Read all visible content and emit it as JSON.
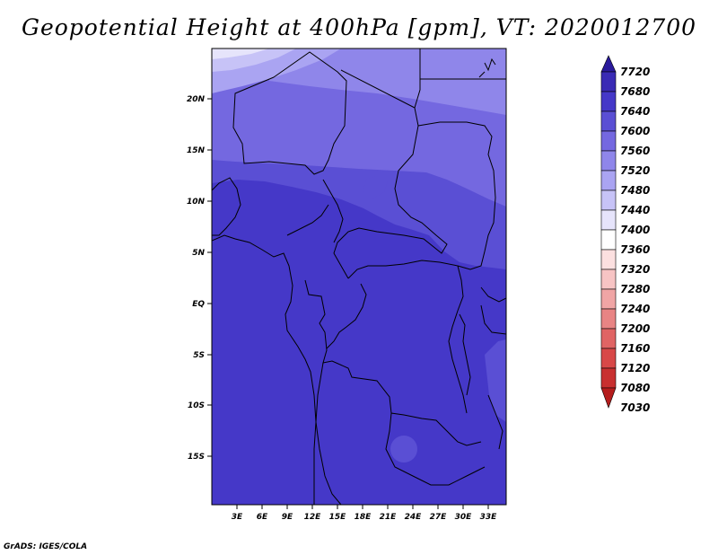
{
  "map": {
    "title": "Geopotential Height at 400hPa [gpm], VT: 2020012700",
    "credit": "GrADS: IGES/COLA",
    "lat_labels": [
      "20N",
      "15N",
      "10N",
      "5N",
      "EQ",
      "5S",
      "10S",
      "15S"
    ],
    "lon_labels": [
      "3E",
      "6E",
      "9E",
      "12E",
      "15E",
      "18E",
      "21E",
      "24E",
      "27E",
      "30E",
      "33E"
    ],
    "colors": {
      "c7640": "#4538c8",
      "c7600": "#5a4fd4",
      "c7560": "#7468e0",
      "c7520": "#8f86ea",
      "c7480": "#aaa4f2",
      "c7440": "#c7c3f7",
      "border": "#000000"
    }
  },
  "colorbar": {
    "labels": [
      "7720",
      "7680",
      "7640",
      "7600",
      "7560",
      "7520",
      "7480",
      "7440",
      "7400",
      "7360",
      "7320",
      "7280",
      "7240",
      "7200",
      "7160",
      "7120",
      "7080",
      "7030"
    ],
    "colors": [
      "#2a1a9c",
      "#3a2bb5",
      "#4538c8",
      "#5a4fd4",
      "#7468e0",
      "#8f86ea",
      "#aaa4f2",
      "#c7c3f7",
      "#e6e4fb",
      "#ffffff",
      "#fce0e0",
      "#f7c4c4",
      "#f0a5a5",
      "#e88484",
      "#e06464",
      "#d84848",
      "#c83030",
      "#b51d1d"
    ]
  }
}
